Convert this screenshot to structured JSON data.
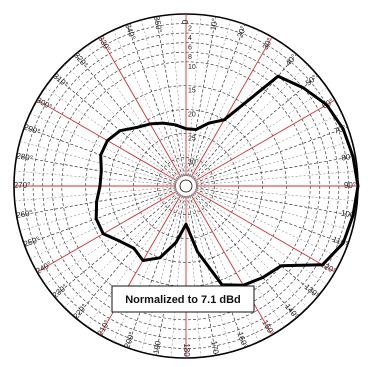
{
  "chart_data": {
    "type": "polar",
    "title": "",
    "annotation": "Normalized to 7.1 dBd",
    "angle_unit": "degrees",
    "angle_direction": "clockwise",
    "zero_direction": "top",
    "angle_ticks": [
      0,
      10,
      20,
      30,
      40,
      50,
      60,
      70,
      80,
      90,
      100,
      110,
      120,
      130,
      140,
      150,
      160,
      170,
      180,
      190,
      200,
      210,
      220,
      230,
      240,
      250,
      260,
      270,
      280,
      290,
      300,
      310,
      320,
      330,
      340,
      350
    ],
    "angle_tick_labels": [
      "0",
      "10°",
      "20°",
      "30°",
      "40°",
      "50°",
      "60°",
      "70°",
      "80°",
      "90°",
      "100",
      "110°",
      "120°",
      "130°",
      "140°",
      "150°",
      "160°",
      "170",
      "180",
      "190",
      "200°",
      "210°",
      "220°",
      "230°",
      "240°",
      "250°",
      "260°",
      "270°",
      "280°",
      "290°",
      "300°",
      "310°",
      "320°",
      "330°",
      "340°",
      "350°"
    ],
    "radial_unit": "dB",
    "radial_range": [
      -36,
      0
    ],
    "radial_ticks": [
      -2,
      -4,
      -6,
      -8,
      -10,
      -15,
      -20,
      -25,
      -30
    ],
    "radial_tick_labels": [
      "2",
      "4",
      "6",
      "8",
      "10",
      "15",
      "20",
      "25",
      "30"
    ],
    "grid": true,
    "red_spokes_every_deg": 30,
    "series": [
      {
        "name": "",
        "points": [
          [
            0,
            -24
          ],
          [
            10,
            -24
          ],
          [
            20,
            -22
          ],
          [
            30,
            -20
          ],
          [
            40,
            -6
          ],
          [
            50,
            -4
          ],
          [
            60,
            -2
          ],
          [
            70,
            -1
          ],
          [
            80,
            -0.5
          ],
          [
            90,
            0
          ],
          [
            100,
            -0.5
          ],
          [
            110,
            -1
          ],
          [
            120,
            -3
          ],
          [
            130,
            -10
          ],
          [
            140,
            -11
          ],
          [
            150,
            -12
          ],
          [
            160,
            -14
          ],
          [
            170,
            -22
          ],
          [
            180,
            -28
          ],
          [
            190,
            -24
          ],
          [
            200,
            -20
          ],
          [
            210,
            -18
          ],
          [
            220,
            -19
          ],
          [
            230,
            -18
          ],
          [
            240,
            -16
          ],
          [
            250,
            -16
          ],
          [
            260,
            -17
          ],
          [
            270,
            -18
          ],
          [
            280,
            -18
          ],
          [
            290,
            -17
          ],
          [
            300,
            -17
          ],
          [
            310,
            -18
          ],
          [
            320,
            -20
          ],
          [
            330,
            -21
          ],
          [
            340,
            -22
          ],
          [
            350,
            -23
          ],
          [
            360,
            -24
          ]
        ]
      }
    ]
  }
}
